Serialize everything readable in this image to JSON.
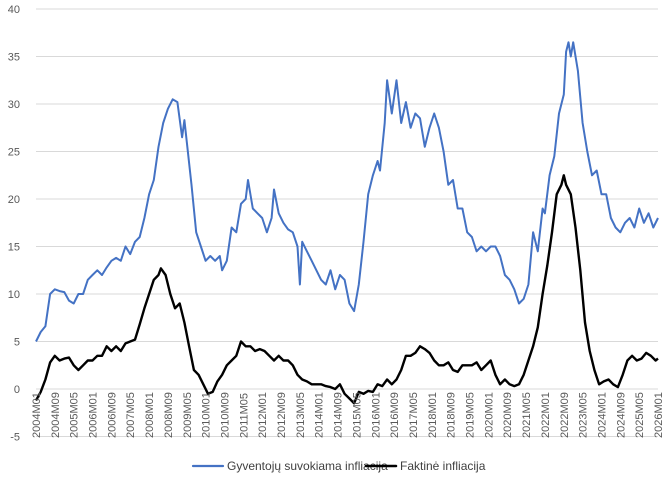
{
  "chart_data": {
    "type": "line",
    "title": "",
    "xlabel": "",
    "ylabel": "",
    "ylim": [
      -5,
      40
    ],
    "yticks": [
      "-5",
      "0",
      "5",
      "10",
      "15",
      "20",
      "25",
      "30",
      "35",
      "40"
    ],
    "x_range": [
      "2004M01",
      "2026M01"
    ],
    "x_tick_labels": [
      "2004M01",
      "2004M09",
      "2005M05",
      "2006M01",
      "2006M09",
      "2007M05",
      "2008M01",
      "2008M09",
      "2009M05",
      "2010M01",
      "2010M09",
      "2011M05",
      "2012M01",
      "2012M09",
      "2013M05",
      "2014M01",
      "2014M09",
      "2015M05",
      "2016M01",
      "2016M09",
      "2017M05",
      "2018M01",
      "2018M09",
      "2019M05",
      "2020M01",
      "2020M09",
      "2021M05",
      "2022M01",
      "2022M09",
      "2023M05",
      "2024M01",
      "2024M09",
      "2025M05",
      "2026M01"
    ],
    "grid": "horizontal",
    "legend_position": "bottom",
    "series": [
      {
        "name": "Gyventojų suvokiama infliacija",
        "color": "#4472c4",
        "points": [
          [
            "2004M01",
            5.0
          ],
          [
            "2004M03",
            6.0
          ],
          [
            "2004M05",
            6.6
          ],
          [
            "2004M07",
            10.0
          ],
          [
            "2004M09",
            10.5
          ],
          [
            "2004M11",
            10.3
          ],
          [
            "2005M01",
            10.2
          ],
          [
            "2005M03",
            9.3
          ],
          [
            "2005M05",
            9.0
          ],
          [
            "2005M07",
            10.0
          ],
          [
            "2005M09",
            10.0
          ],
          [
            "2005M11",
            11.5
          ],
          [
            "2006M01",
            12.0
          ],
          [
            "2006M03",
            12.5
          ],
          [
            "2006M05",
            12.0
          ],
          [
            "2006M07",
            12.8
          ],
          [
            "2006M09",
            13.5
          ],
          [
            "2006M11",
            13.8
          ],
          [
            "2007M01",
            13.5
          ],
          [
            "2007M03",
            15.0
          ],
          [
            "2007M05",
            14.2
          ],
          [
            "2007M07",
            15.5
          ],
          [
            "2007M09",
            16.0
          ],
          [
            "2007M11",
            18.0
          ],
          [
            "2008M01",
            20.5
          ],
          [
            "2008M03",
            22.0
          ],
          [
            "2008M05",
            25.5
          ],
          [
            "2008M07",
            28.0
          ],
          [
            "2008M09",
            29.5
          ],
          [
            "2008M11",
            30.5
          ],
          [
            "2009M01",
            30.2
          ],
          [
            "2009M03",
            26.5
          ],
          [
            "2009M04",
            28.3
          ],
          [
            "2009M05",
            26.0
          ],
          [
            "2009M07",
            21.5
          ],
          [
            "2009M09",
            16.5
          ],
          [
            "2009M11",
            15.0
          ],
          [
            "2010M01",
            13.5
          ],
          [
            "2010M03",
            14.0
          ],
          [
            "2010M05",
            13.5
          ],
          [
            "2010M07",
            14.0
          ],
          [
            "2010M08",
            12.5
          ],
          [
            "2010M10",
            13.5
          ],
          [
            "2010M12",
            17.0
          ],
          [
            "2011M02",
            16.5
          ],
          [
            "2011M04",
            19.5
          ],
          [
            "2011M06",
            20.0
          ],
          [
            "2011M07",
            22.0
          ],
          [
            "2011M09",
            19.0
          ],
          [
            "2011M11",
            18.5
          ],
          [
            "2012M01",
            18.0
          ],
          [
            "2012M03",
            16.5
          ],
          [
            "2012M05",
            18.0
          ],
          [
            "2012M06",
            21.0
          ],
          [
            "2012M08",
            18.5
          ],
          [
            "2012M10",
            17.5
          ],
          [
            "2012M12",
            16.8
          ],
          [
            "2013M02",
            16.5
          ],
          [
            "2013M04",
            15.0
          ],
          [
            "2013M05",
            11.0
          ],
          [
            "2013M06",
            15.5
          ],
          [
            "2013M08",
            14.5
          ],
          [
            "2013M10",
            13.5
          ],
          [
            "2013M12",
            12.5
          ],
          [
            "2014M02",
            11.5
          ],
          [
            "2014M04",
            11.0
          ],
          [
            "2014M06",
            12.5
          ],
          [
            "2014M08",
            10.5
          ],
          [
            "2014M10",
            12.0
          ],
          [
            "2014M12",
            11.5
          ],
          [
            "2015M02",
            9.0
          ],
          [
            "2015M04",
            8.2
          ],
          [
            "2015M06",
            11.0
          ],
          [
            "2015M08",
            15.5
          ],
          [
            "2015M10",
            20.5
          ],
          [
            "2015M12",
            22.5
          ],
          [
            "2016M02",
            24.0
          ],
          [
            "2016M03",
            23.0
          ],
          [
            "2016M05",
            28.0
          ],
          [
            "2016M06",
            32.5
          ],
          [
            "2016M08",
            29.0
          ],
          [
            "2016M10",
            32.5
          ],
          [
            "2016M12",
            28.0
          ],
          [
            "2017M02",
            30.2
          ],
          [
            "2017M04",
            27.5
          ],
          [
            "2017M06",
            29.0
          ],
          [
            "2017M08",
            28.5
          ],
          [
            "2017M10",
            25.5
          ],
          [
            "2017M12",
            27.5
          ],
          [
            "2018M02",
            29.0
          ],
          [
            "2018M04",
            27.5
          ],
          [
            "2018M06",
            25.0
          ],
          [
            "2018M08",
            21.5
          ],
          [
            "2018M10",
            22.0
          ],
          [
            "2018M12",
            19.0
          ],
          [
            "2019M02",
            19.0
          ],
          [
            "2019M04",
            16.5
          ],
          [
            "2019M06",
            16.0
          ],
          [
            "2019M08",
            14.5
          ],
          [
            "2019M10",
            15.0
          ],
          [
            "2019M12",
            14.5
          ],
          [
            "2020M02",
            15.0
          ],
          [
            "2020M04",
            15.0
          ],
          [
            "2020M06",
            14.0
          ],
          [
            "2020M08",
            12.0
          ],
          [
            "2020M10",
            11.5
          ],
          [
            "2020M12",
            10.5
          ],
          [
            "2021M02",
            9.0
          ],
          [
            "2021M04",
            9.5
          ],
          [
            "2021M06",
            11.0
          ],
          [
            "2021M08",
            16.5
          ],
          [
            "2021M10",
            14.5
          ],
          [
            "2021M12",
            19.0
          ],
          [
            "2022M01",
            18.5
          ],
          [
            "2022M03",
            22.5
          ],
          [
            "2022M05",
            24.5
          ],
          [
            "2022M07",
            29.0
          ],
          [
            "2022M09",
            31.0
          ],
          [
            "2022M10",
            35.5
          ],
          [
            "2022M11",
            36.5
          ],
          [
            "2022M12",
            35.0
          ],
          [
            "2023M01",
            36.5
          ],
          [
            "2023M03",
            33.5
          ],
          [
            "2023M05",
            28.0
          ],
          [
            "2023M07",
            25.0
          ],
          [
            "2023M09",
            22.5
          ],
          [
            "2023M11",
            23.0
          ],
          [
            "2024M01",
            20.5
          ],
          [
            "2024M03",
            20.5
          ],
          [
            "2024M05",
            18.0
          ],
          [
            "2024M07",
            17.0
          ],
          [
            "2024M09",
            16.5
          ],
          [
            "2024M11",
            17.5
          ],
          [
            "2025M01",
            18.0
          ],
          [
            "2025M03",
            17.0
          ],
          [
            "2025M05",
            19.0
          ],
          [
            "2025M07",
            17.5
          ],
          [
            "2025M09",
            18.5
          ],
          [
            "2025M11",
            17.0
          ],
          [
            "2026M01",
            18.0
          ]
        ]
      },
      {
        "name": "Faktinė infliacija",
        "color": "#000000",
        "points": [
          [
            "2004M01",
            -1.2
          ],
          [
            "2004M03",
            -0.3
          ],
          [
            "2004M05",
            1.0
          ],
          [
            "2004M07",
            2.8
          ],
          [
            "2004M09",
            3.5
          ],
          [
            "2004M11",
            3.0
          ],
          [
            "2005M01",
            3.2
          ],
          [
            "2005M03",
            3.3
          ],
          [
            "2005M05",
            2.5
          ],
          [
            "2005M07",
            2.0
          ],
          [
            "2005M09",
            2.5
          ],
          [
            "2005M11",
            3.0
          ],
          [
            "2006M01",
            3.0
          ],
          [
            "2006M03",
            3.5
          ],
          [
            "2006M05",
            3.5
          ],
          [
            "2006M07",
            4.5
          ],
          [
            "2006M09",
            4.0
          ],
          [
            "2006M11",
            4.5
          ],
          [
            "2007M01",
            4.0
          ],
          [
            "2007M03",
            4.8
          ],
          [
            "2007M05",
            5.0
          ],
          [
            "2007M07",
            5.2
          ],
          [
            "2007M09",
            6.8
          ],
          [
            "2007M11",
            8.5
          ],
          [
            "2008M01",
            10.0
          ],
          [
            "2008M03",
            11.5
          ],
          [
            "2008M05",
            12.0
          ],
          [
            "2008M06",
            12.7
          ],
          [
            "2008M08",
            12.0
          ],
          [
            "2008M10",
            10.0
          ],
          [
            "2008M12",
            8.5
          ],
          [
            "2009M02",
            9.0
          ],
          [
            "2009M04",
            7.0
          ],
          [
            "2009M06",
            4.5
          ],
          [
            "2009M08",
            2.0
          ],
          [
            "2009M10",
            1.5
          ],
          [
            "2009M12",
            0.5
          ],
          [
            "2010M02",
            -0.5
          ],
          [
            "2010M04",
            -0.3
          ],
          [
            "2010M06",
            0.8
          ],
          [
            "2010M08",
            1.5
          ],
          [
            "2010M10",
            2.5
          ],
          [
            "2010M12",
            3.0
          ],
          [
            "2011M02",
            3.5
          ],
          [
            "2011M04",
            5.0
          ],
          [
            "2011M06",
            4.5
          ],
          [
            "2011M08",
            4.5
          ],
          [
            "2011M10",
            4.0
          ],
          [
            "2011M12",
            4.2
          ],
          [
            "2012M02",
            4.0
          ],
          [
            "2012M04",
            3.5
          ],
          [
            "2012M06",
            3.0
          ],
          [
            "2012M08",
            3.5
          ],
          [
            "2012M10",
            3.0
          ],
          [
            "2012M12",
            3.0
          ],
          [
            "2013M02",
            2.5
          ],
          [
            "2013M04",
            1.5
          ],
          [
            "2013M06",
            1.0
          ],
          [
            "2013M08",
            0.8
          ],
          [
            "2013M10",
            0.5
          ],
          [
            "2013M12",
            0.5
          ],
          [
            "2014M02",
            0.5
          ],
          [
            "2014M04",
            0.3
          ],
          [
            "2014M06",
            0.2
          ],
          [
            "2014M08",
            0.0
          ],
          [
            "2014M10",
            0.5
          ],
          [
            "2014M12",
            -0.5
          ],
          [
            "2015M02",
            -1.0
          ],
          [
            "2015M04",
            -1.5
          ],
          [
            "2015M06",
            -0.3
          ],
          [
            "2015M08",
            -0.5
          ],
          [
            "2015M10",
            -0.2
          ],
          [
            "2015M12",
            -0.3
          ],
          [
            "2016M02",
            0.5
          ],
          [
            "2016M04",
            0.3
          ],
          [
            "2016M06",
            1.0
          ],
          [
            "2016M08",
            0.5
          ],
          [
            "2016M10",
            1.0
          ],
          [
            "2016M12",
            2.0
          ],
          [
            "2017M02",
            3.5
          ],
          [
            "2017M04",
            3.5
          ],
          [
            "2017M06",
            3.8
          ],
          [
            "2017M08",
            4.5
          ],
          [
            "2017M10",
            4.2
          ],
          [
            "2017M12",
            3.8
          ],
          [
            "2018M02",
            3.0
          ],
          [
            "2018M04",
            2.5
          ],
          [
            "2018M06",
            2.5
          ],
          [
            "2018M08",
            2.8
          ],
          [
            "2018M10",
            2.0
          ],
          [
            "2018M12",
            1.8
          ],
          [
            "2019M02",
            2.5
          ],
          [
            "2019M04",
            2.5
          ],
          [
            "2019M06",
            2.5
          ],
          [
            "2019M08",
            2.8
          ],
          [
            "2019M10",
            2.0
          ],
          [
            "2019M12",
            2.5
          ],
          [
            "2020M02",
            3.0
          ],
          [
            "2020M04",
            1.5
          ],
          [
            "2020M06",
            0.5
          ],
          [
            "2020M08",
            1.0
          ],
          [
            "2020M10",
            0.5
          ],
          [
            "2020M12",
            0.3
          ],
          [
            "2021M02",
            0.5
          ],
          [
            "2021M04",
            1.5
          ],
          [
            "2021M06",
            3.0
          ],
          [
            "2021M08",
            4.5
          ],
          [
            "2021M10",
            6.5
          ],
          [
            "2021M12",
            10.0
          ],
          [
            "2022M02",
            13.0
          ],
          [
            "2022M04",
            16.5
          ],
          [
            "2022M06",
            20.5
          ],
          [
            "2022M08",
            21.5
          ],
          [
            "2022M09",
            22.5
          ],
          [
            "2022M10",
            21.5
          ],
          [
            "2022M12",
            20.5
          ],
          [
            "2023M02",
            17.0
          ],
          [
            "2023M04",
            12.5
          ],
          [
            "2023M06",
            7.0
          ],
          [
            "2023M08",
            4.0
          ],
          [
            "2023M10",
            2.0
          ],
          [
            "2023M12",
            0.5
          ],
          [
            "2024M02",
            0.8
          ],
          [
            "2024M04",
            1.0
          ],
          [
            "2024M06",
            0.5
          ],
          [
            "2024M08",
            0.2
          ],
          [
            "2024M10",
            1.5
          ],
          [
            "2024M12",
            3.0
          ],
          [
            "2025M02",
            3.5
          ],
          [
            "2025M04",
            3.0
          ],
          [
            "2025M06",
            3.2
          ],
          [
            "2025M08",
            3.8
          ],
          [
            "2025M10",
            3.5
          ],
          [
            "2025M12",
            3.0
          ],
          [
            "2026M01",
            3.2
          ]
        ]
      }
    ]
  }
}
